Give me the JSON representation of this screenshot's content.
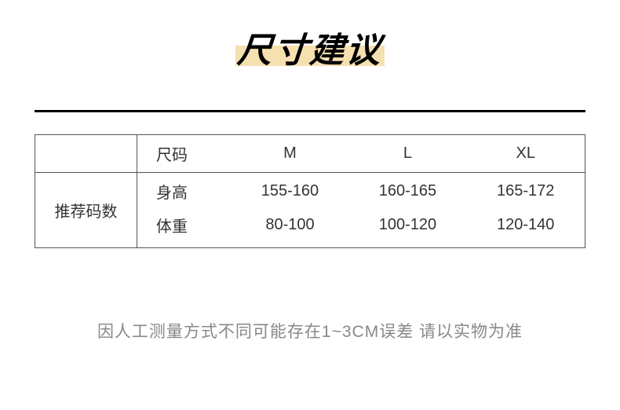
{
  "title": "尺寸建议",
  "title_highlight_color": "#f5e0b0",
  "hr_color": "#000000",
  "table": {
    "row_header_label": "推荐码数",
    "size_label": "尺码",
    "sizes": [
      "M",
      "L",
      "XL"
    ],
    "metrics": [
      {
        "label": "身高",
        "values": [
          "155-160",
          "160-165",
          "165-172"
        ]
      },
      {
        "label": "体重",
        "values": [
          "80-100",
          "100-120",
          "120-140"
        ]
      }
    ],
    "border_color": "#555555",
    "text_color": "#333333",
    "font_size": 20
  },
  "note": "因人工测量方式不同可能存在1~3CM误差 请以实物为准",
  "note_color": "#888888",
  "background_color": "#ffffff"
}
